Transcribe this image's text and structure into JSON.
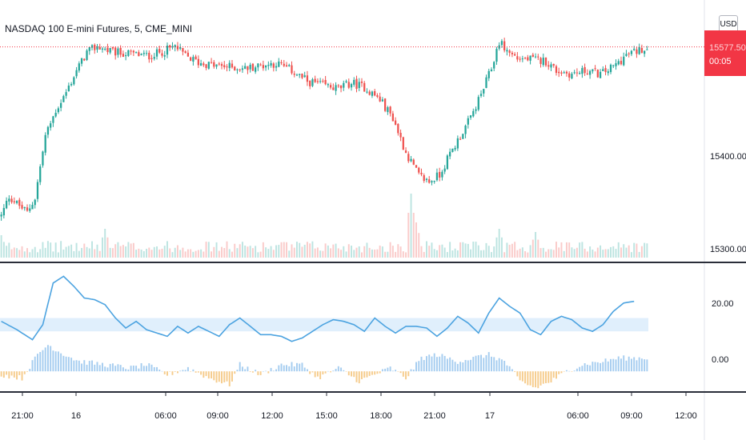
{
  "header": {
    "symbol_title": "NASDAQ 100 E-mini Futures, 5, CME_MINI",
    "currency_badge": "USD"
  },
  "price_tag": {
    "price": "15577.50",
    "countdown": "00:05",
    "color": "#f23645"
  },
  "colors": {
    "up": "#26a69a",
    "down": "#ef5350",
    "line": "#4ca3e0",
    "band": "#d8ebfb",
    "hist_pos": "#a6cdf0",
    "hist_neg": "#f6cc8c",
    "separator": "#2a2e39"
  },
  "chart_data": [
    {
      "type": "candlestick",
      "title": "NASDAQ 100 E-mini Futures, 5, CME_MINI",
      "ylim": [
        15290,
        15620
      ],
      "y_ticks": [
        "15400.00",
        "15300.00"
      ],
      "x_ticks": [
        "21:00",
        "16",
        "06:00",
        "09:00",
        "12:00",
        "15:00",
        "18:00",
        "21:00",
        "17",
        "06:00",
        "09:00",
        "12:00"
      ],
      "last_price": 15577.5,
      "close_path": [
        [
          0,
          15345
        ],
        [
          3,
          15372
        ],
        [
          6,
          15362
        ],
        [
          10,
          15350
        ],
        [
          13,
          15370
        ],
        [
          17,
          15455
        ],
        [
          21,
          15490
        ],
        [
          25,
          15515
        ],
        [
          29,
          15545
        ],
        [
          33,
          15570
        ],
        [
          37,
          15578
        ],
        [
          43,
          15570
        ],
        [
          50,
          15568
        ],
        [
          57,
          15565
        ],
        [
          63,
          15572
        ],
        [
          67,
          15578
        ],
        [
          71,
          15565
        ],
        [
          76,
          15556
        ],
        [
          82,
          15552
        ],
        [
          88,
          15550
        ],
        [
          94,
          15548
        ],
        [
          100,
          15552
        ],
        [
          106,
          15555
        ],
        [
          112,
          15545
        ],
        [
          118,
          15530
        ],
        [
          124,
          15525
        ],
        [
          130,
          15520
        ],
        [
          135,
          15528
        ],
        [
          140,
          15522
        ],
        [
          146,
          15505
        ],
        [
          151,
          15480
        ],
        [
          156,
          15432
        ],
        [
          161,
          15400
        ],
        [
          165,
          15392
        ],
        [
          169,
          15402
        ],
        [
          173,
          15430
        ],
        [
          177,
          15455
        ],
        [
          181,
          15480
        ],
        [
          185,
          15512
        ],
        [
          189,
          15548
        ],
        [
          192,
          15585
        ],
        [
          195,
          15572
        ],
        [
          199,
          15562
        ],
        [
          205,
          15560
        ],
        [
          210,
          15558
        ],
        [
          214,
          15545
        ],
        [
          220,
          15540
        ],
        [
          226,
          15545
        ],
        [
          231,
          15540
        ],
        [
          236,
          15550
        ],
        [
          241,
          15566
        ],
        [
          245,
          15572
        ],
        [
          249,
          15577.5
        ]
      ],
      "volume_spikes": [
        [
          0,
          0.35
        ],
        [
          40,
          0.45
        ],
        [
          158,
          1.0
        ],
        [
          160,
          0.55
        ],
        [
          192,
          0.45
        ],
        [
          206,
          0.4
        ]
      ]
    },
    {
      "type": "line",
      "series": [
        {
          "kind": "line",
          "points": [
            [
              0,
              15
            ],
            [
              6,
              12.5
            ],
            [
              12,
              9.5
            ],
            [
              16,
              14
            ],
            [
              20,
              26.5
            ],
            [
              24,
              28.5
            ],
            [
              28,
              25.5
            ],
            [
              32,
              22
            ],
            [
              36,
              21.5
            ],
            [
              40,
              20
            ],
            [
              44,
              16
            ],
            [
              48,
              13
            ],
            [
              52,
              15
            ],
            [
              56,
              12.5
            ],
            [
              60,
              11.5
            ],
            [
              64,
              10.5
            ],
            [
              68,
              13.5
            ],
            [
              72,
              11.5
            ],
            [
              76,
              13.5
            ],
            [
              80,
              12
            ],
            [
              84,
              10.5
            ],
            [
              88,
              14
            ],
            [
              92,
              16
            ],
            [
              96,
              13.5
            ],
            [
              100,
              11
            ],
            [
              104,
              11
            ],
            [
              108,
              10.5
            ],
            [
              112,
              9
            ],
            [
              116,
              10
            ],
            [
              120,
              12
            ],
            [
              124,
              14
            ],
            [
              128,
              15.5
            ],
            [
              132,
              15
            ],
            [
              136,
              14
            ],
            [
              140,
              12
            ],
            [
              144,
              16
            ],
            [
              148,
              13.5
            ],
            [
              152,
              11.5
            ],
            [
              156,
              13.5
            ],
            [
              160,
              13.5
            ],
            [
              164,
              13
            ],
            [
              168,
              10.5
            ],
            [
              172,
              13
            ],
            [
              176,
              16.5
            ],
            [
              180,
              14.5
            ],
            [
              184,
              11.5
            ],
            [
              188,
              17.5
            ],
            [
              192,
              22
            ],
            [
              196,
              19.5
            ],
            [
              200,
              17.5
            ],
            [
              204,
              12.5
            ],
            [
              208,
              11
            ],
            [
              212,
              15
            ],
            [
              216,
              16.5
            ],
            [
              220,
              15.5
            ],
            [
              224,
              13
            ],
            [
              228,
              12
            ],
            [
              232,
              14
            ],
            [
              236,
              18
            ],
            [
              240,
              20.5
            ],
            [
              244,
              21
            ]
          ]
        },
        {
          "kind": "histogram",
          "values": [
            [
              0,
              -1
            ],
            [
              8,
              -2
            ],
            [
              14,
              5
            ],
            [
              18,
              8
            ],
            [
              22,
              6
            ],
            [
              30,
              3
            ],
            [
              40,
              2
            ],
            [
              50,
              1
            ],
            [
              56,
              2
            ],
            [
              64,
              -1
            ],
            [
              72,
              1
            ],
            [
              80,
              -2
            ],
            [
              88,
              -4
            ],
            [
              92,
              2
            ],
            [
              100,
              -1
            ],
            [
              108,
              2
            ],
            [
              116,
              2
            ],
            [
              122,
              -2
            ],
            [
              130,
              1
            ],
            [
              138,
              -3
            ],
            [
              144,
              -1
            ],
            [
              150,
              1
            ],
            [
              156,
              -2
            ],
            [
              162,
              4
            ],
            [
              168,
              5
            ],
            [
              176,
              3
            ],
            [
              182,
              4
            ],
            [
              188,
              5
            ],
            [
              194,
              3
            ],
            [
              200,
              -3
            ],
            [
              206,
              -5
            ],
            [
              212,
              -3
            ],
            [
              218,
              0
            ],
            [
              224,
              2
            ],
            [
              232,
              3
            ],
            [
              238,
              4
            ],
            [
              244,
              4
            ]
          ]
        }
      ],
      "band": [
        12,
        16
      ],
      "ylim": [
        -5,
        31
      ],
      "y_ticks": [
        "20.00",
        "0.00"
      ]
    }
  ]
}
